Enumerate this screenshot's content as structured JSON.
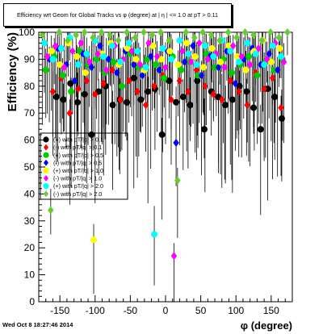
{
  "timestamp": "Wed Oct  8 18:27:46 2014",
  "chart_data": {
    "type": "scatter",
    "title": "Efficiency wrt Geom for Global Tracks vs φ (degree) at | η | <= 1.0 at pT > 0.11",
    "xlabel": "φ (degree)",
    "ylabel": "Efficiency (%)",
    "xlim": [
      -180,
      180
    ],
    "ylim": [
      0,
      100
    ],
    "xticks": [
      -150,
      -100,
      -50,
      0,
      50,
      100,
      150
    ],
    "yticks": [
      0,
      10,
      20,
      30,
      40,
      50,
      60,
      70,
      80,
      90,
      100
    ],
    "grid": false,
    "legend_position": "left-center",
    "error_bars": true,
    "series": [
      {
        "name": "(+) with pT/|q| > 0.1",
        "color": "#000000",
        "marker": "circle",
        "x": [
          -155,
          -145,
          -135,
          -125,
          -115,
          -105,
          -95,
          -85,
          -75,
          -65,
          -55,
          -45,
          -35,
          -25,
          -15,
          -5,
          5,
          15,
          25,
          35,
          45,
          55,
          65,
          75,
          85,
          95,
          105,
          115,
          125,
          135,
          145,
          155,
          165
        ],
        "y": [
          76,
          75,
          81,
          74,
          77,
          62,
          78,
          80,
          73,
          75,
          74,
          83,
          75,
          78,
          79,
          62,
          82,
          74,
          76,
          73,
          82,
          64,
          78,
          76,
          73,
          75,
          80,
          78,
          72,
          64,
          79,
          76,
          68
        ]
      },
      {
        "name": "(-) with pT/|q| > 0.1",
        "color": "#ff0000",
        "marker": "diamond",
        "x": [
          -160,
          -148,
          -136,
          -124,
          -112,
          -100,
          -88,
          -76,
          -64,
          -52,
          -40,
          -28,
          -16,
          -4,
          8,
          20,
          32,
          44,
          56,
          68,
          80,
          92,
          104,
          116,
          128,
          140,
          152,
          164
        ],
        "y": [
          78,
          83,
          70,
          79,
          82,
          77,
          81,
          86,
          75,
          82,
          78,
          73,
          80,
          84,
          75,
          82,
          78,
          86,
          80,
          77,
          75,
          82,
          78,
          73,
          85,
          79,
          83,
          72
        ]
      },
      {
        "name": "(+) with pT/|q| > 0.5",
        "color": "#00cc00",
        "marker": "circle",
        "x": [
          -170,
          -158,
          -146,
          -134,
          -122,
          -110,
          -98,
          -86,
          -74,
          -62,
          -50,
          -38,
          -26,
          -14,
          -2,
          10,
          22,
          34,
          46,
          58,
          70,
          82,
          94,
          106,
          118,
          130,
          142,
          154,
          166
        ],
        "y": [
          86,
          91,
          84,
          78,
          93,
          88,
          90,
          85,
          89,
          80,
          92,
          87,
          90,
          88,
          83,
          91,
          86,
          89,
          84,
          92,
          87,
          90,
          85,
          88,
          91,
          84,
          89,
          86,
          90
        ]
      },
      {
        "name": "(-) with pT/|q| > 0.5",
        "color": "#0000ff",
        "marker": "diamond",
        "x": [
          -165,
          -153,
          -141,
          -129,
          -117,
          -105,
          -93,
          -81,
          -69,
          -57,
          -45,
          -33,
          -21,
          -9,
          3,
          15,
          27,
          39,
          51,
          63,
          75,
          87,
          99,
          111,
          123,
          135,
          147,
          159
        ],
        "y": [
          90,
          94,
          88,
          82,
          92,
          87,
          95,
          90,
          85,
          93,
          88,
          84,
          91,
          86,
          93,
          59,
          89,
          95,
          84,
          91,
          87,
          93,
          81,
          90,
          94,
          88,
          92,
          86
        ]
      },
      {
        "name": "(+) with pT/|q| > 1.0",
        "color": "#ffff00",
        "marker": "circle",
        "x": [
          -162,
          -150,
          -138,
          -126,
          -114,
          -102,
          -90,
          -78,
          -66,
          -54,
          -42,
          -30,
          -18,
          -6,
          6,
          18,
          30,
          42,
          54,
          66,
          78,
          90,
          102,
          114,
          126,
          138,
          150,
          162
        ],
        "y": [
          93,
          88,
          96,
          91,
          85,
          23,
          92,
          96,
          88,
          94,
          90,
          86,
          95,
          90,
          93,
          88,
          96,
          91,
          87,
          94,
          89,
          95,
          91,
          86,
          93,
          97,
          89,
          94
        ]
      },
      {
        "name": "(-) with pT/|q| > 1.0",
        "color": "#ff00ff",
        "marker": "diamond",
        "x": [
          -168,
          -156,
          -144,
          -132,
          -120,
          -108,
          -96,
          -84,
          -72,
          -60,
          -48,
          -36,
          -24,
          -12,
          0,
          12,
          24,
          36,
          48,
          60,
          72,
          84,
          96,
          108,
          120,
          132,
          144,
          156,
          168
        ],
        "y": [
          91,
          95,
          87,
          93,
          96,
          89,
          92,
          86,
          95,
          90,
          93,
          88,
          96,
          91,
          87,
          17,
          93,
          89,
          96,
          90,
          92,
          87,
          95,
          91,
          88,
          94,
          90,
          96,
          89
        ]
      },
      {
        "name": "(+) with pT/|q| > 2.0",
        "color": "#00ffff",
        "marker": "circle",
        "x": [
          -172,
          -160,
          -148,
          -136,
          -124,
          -112,
          -100,
          -88,
          -76,
          -64,
          -52,
          -40,
          -28,
          -16,
          -4,
          8,
          20,
          32,
          44,
          56,
          68,
          80,
          92,
          104,
          116,
          128,
          140,
          152,
          164
        ],
        "y": [
          96,
          90,
          94,
          98,
          88,
          92,
          97,
          91,
          95,
          89,
          96,
          93,
          87,
          25,
          94,
          90,
          97,
          92,
          88,
          95,
          91,
          97,
          93,
          89,
          96,
          92,
          88,
          95,
          91
        ]
      },
      {
        "name": "(-) with pT/|q| > 2.0",
        "color": "#66cc33",
        "marker": "diamond",
        "x": [
          -175,
          -163,
          -151,
          -139,
          -127,
          -115,
          -103,
          -91,
          -79,
          -67,
          -55,
          -43,
          -31,
          -19,
          -7,
          5,
          17,
          29,
          41,
          53,
          65,
          77,
          89,
          101,
          113,
          125,
          137,
          149,
          161,
          173
        ],
        "y": [
          99,
          34,
          100,
          97,
          99,
          100,
          98,
          100,
          99,
          97,
          100,
          98,
          100,
          99,
          100,
          97,
          45,
          100,
          98,
          100,
          99,
          97,
          100,
          98,
          100,
          99,
          97,
          100,
          98,
          100
        ]
      }
    ]
  }
}
